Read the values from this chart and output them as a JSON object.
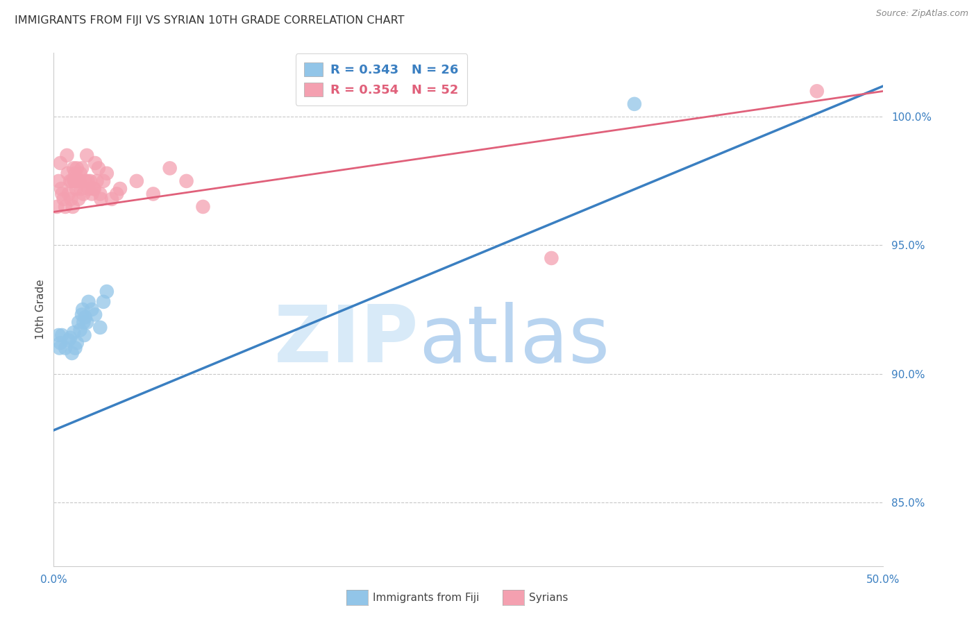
{
  "title": "IMMIGRANTS FROM FIJI VS SYRIAN 10TH GRADE CORRELATION CHART",
  "source": "Source: ZipAtlas.com",
  "ylabel": "10th Grade",
  "xlim": [
    0.0,
    50.0
  ],
  "ylim": [
    82.5,
    102.5
  ],
  "xticks": [
    0.0,
    10.0,
    20.0,
    30.0,
    40.0,
    50.0
  ],
  "xticklabels": [
    "0.0%",
    "",
    "",
    "",
    "",
    "50.0%"
  ],
  "yticks": [
    85.0,
    90.0,
    95.0,
    100.0
  ],
  "yticklabels": [
    "85.0%",
    "90.0%",
    "95.0%",
    "100.0%"
  ],
  "fiji_color": "#92c5e8",
  "syrian_color": "#f4a0b0",
  "fiji_line_color": "#3a7fc1",
  "syrian_line_color": "#e0607a",
  "fiji_R": "0.343",
  "fiji_N": "26",
  "syrian_R": "0.354",
  "syrian_N": "52",
  "fiji_line_x0": 0.0,
  "fiji_line_y0": 87.8,
  "fiji_line_x1": 50.0,
  "fiji_line_y1": 101.2,
  "syrian_line_x0": 0.0,
  "syrian_line_y0": 96.3,
  "syrian_line_x1": 50.0,
  "syrian_line_y1": 101.0,
  "fiji_x": [
    0.4,
    0.5,
    0.7,
    0.9,
    1.0,
    1.1,
    1.2,
    1.3,
    1.4,
    1.5,
    1.6,
    1.7,
    1.75,
    1.8,
    1.85,
    1.9,
    2.0,
    2.1,
    2.3,
    2.5,
    2.8,
    3.0,
    3.2,
    35.0,
    0.3,
    0.35
  ],
  "fiji_y": [
    91.2,
    91.5,
    91.0,
    91.3,
    91.4,
    90.8,
    91.6,
    91.0,
    91.2,
    92.0,
    91.7,
    92.3,
    92.5,
    92.0,
    91.5,
    92.2,
    92.0,
    92.8,
    92.5,
    92.3,
    91.8,
    92.8,
    93.2,
    100.5,
    91.5,
    91.0
  ],
  "syrian_x": [
    0.2,
    0.3,
    0.4,
    0.5,
    0.6,
    0.7,
    0.8,
    0.9,
    1.0,
    1.05,
    1.1,
    1.2,
    1.25,
    1.3,
    1.35,
    1.4,
    1.5,
    1.55,
    1.6,
    1.7,
    1.8,
    1.9,
    2.0,
    2.1,
    2.2,
    2.3,
    2.4,
    2.5,
    2.6,
    2.7,
    2.8,
    3.0,
    3.2,
    3.5,
    4.0,
    5.0,
    6.0,
    7.0,
    8.0,
    9.0,
    0.45,
    0.85,
    1.15,
    1.45,
    1.65,
    2.05,
    2.45,
    3.8,
    30.0,
    46.0,
    1.25,
    2.85
  ],
  "syrian_y": [
    96.5,
    97.5,
    98.2,
    97.0,
    96.8,
    96.5,
    98.5,
    97.0,
    97.5,
    96.8,
    97.5,
    98.0,
    97.5,
    97.8,
    97.2,
    98.0,
    96.8,
    97.5,
    97.8,
    98.0,
    97.0,
    97.5,
    98.5,
    97.2,
    97.5,
    97.0,
    97.2,
    98.2,
    97.5,
    98.0,
    97.0,
    97.5,
    97.8,
    96.8,
    97.2,
    97.5,
    97.0,
    98.0,
    97.5,
    96.5,
    97.2,
    97.8,
    96.5,
    97.5,
    97.2,
    97.5,
    97.2,
    97.0,
    94.5,
    101.0,
    97.5,
    96.8
  ],
  "background_color": "#ffffff",
  "title_fontsize": 11.5,
  "tick_color": "#3a7fc1",
  "grid_color": "#c8c8c8",
  "watermark_zip_color": "#d8eaf8",
  "watermark_atlas_color": "#b8d4f0"
}
